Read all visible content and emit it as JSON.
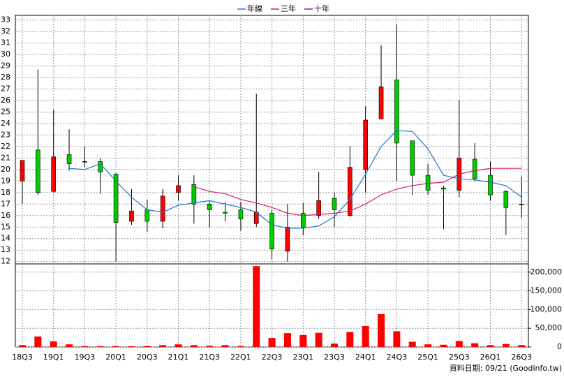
{
  "chart_data": {
    "type": "candlestick",
    "categories": [
      "18Q3",
      null,
      "19Q1",
      null,
      "19Q3",
      null,
      "20Q1",
      null,
      "20Q3",
      null,
      "21Q1",
      null,
      "21Q3",
      null,
      "22Q1",
      null,
      "22Q3",
      null,
      "23Q1",
      null,
      "23Q3",
      null,
      "24Q1",
      null,
      "24Q3",
      null,
      "25Q1",
      null,
      "25Q3",
      null,
      "26Q1",
      null,
      "26Q3"
    ],
    "open": [
      19,
      21.7,
      18.1,
      21.3,
      20.7,
      20.7,
      19.6,
      15.5,
      16.5,
      15.5,
      18,
      18.7,
      17,
      16.3,
      16.5,
      15.3,
      16.2,
      12.9,
      16.2,
      16,
      17.5,
      16,
      20,
      24.4,
      27.8,
      22.5,
      19.5,
      18.4,
      18.2,
      20.9,
      19.5,
      18.1,
      17
    ],
    "high": [
      20.8,
      28.7,
      25.2,
      23.5,
      22,
      21,
      19.7,
      18.3,
      17.4,
      18.3,
      19.5,
      19.5,
      17.3,
      17.2,
      17.2,
      26.6,
      16.5,
      17,
      17.1,
      19.8,
      18,
      22,
      25.5,
      30.8,
      32.6,
      22.5,
      20.5,
      18.6,
      26,
      22.3,
      20.7,
      18.2,
      19.4
    ],
    "low": [
      17,
      17.8,
      18,
      19.9,
      20.2,
      17.9,
      12,
      15.2,
      14.6,
      14.9,
      17.3,
      15.3,
      15,
      15.5,
      14.7,
      15,
      12.2,
      12,
      14.3,
      15.7,
      15,
      15.9,
      18,
      24.4,
      19,
      17.8,
      17.8,
      14.8,
      17.6,
      19,
      17.3,
      14.3,
      15.8
    ],
    "close": [
      20.8,
      18,
      21.1,
      20.5,
      20.7,
      19.8,
      15.4,
      16.4,
      15.5,
      17.7,
      18.6,
      17,
      16.5,
      16.2,
      15.7,
      16.3,
      13.1,
      15,
      15,
      17.3,
      16.5,
      20.2,
      24.3,
      27.2,
      22.3,
      19.5,
      18.2,
      18.3,
      21,
      19.2,
      17.8,
      16.7,
      17
    ],
    "up_color": "#ff0000",
    "down_color": "#00cc00",
    "lines": [
      {
        "name": "年線",
        "color": "#1f78d0",
        "values": [
          null,
          null,
          null,
          20.1,
          20,
          20.5,
          19,
          17.6,
          16.5,
          16.3,
          16.9,
          17.1,
          17.3,
          17,
          16.7,
          16.3,
          15.2,
          14.9,
          14.9,
          15.1,
          15.9,
          17.4,
          19.6,
          22,
          23.4,
          23.3,
          21.8,
          19.5,
          19.2,
          19.1,
          18.9,
          18.6,
          17.6
        ]
      },
      {
        "name": "三年",
        "color": "#d0206a",
        "values": [
          null,
          null,
          null,
          null,
          null,
          null,
          null,
          null,
          null,
          null,
          null,
          18.5,
          18.1,
          17.9,
          17.4,
          17.1,
          16.7,
          16.2,
          16,
          16.1,
          16.2,
          16.4,
          17,
          17.8,
          18.3,
          18.6,
          18.8,
          18.9,
          19.6,
          19.9,
          20.1,
          20.1,
          20.1
        ]
      },
      {
        "name": "十年",
        "color": "#8a1a8a",
        "values": [
          null,
          null,
          null,
          null,
          null,
          null,
          null,
          null,
          null,
          null,
          null,
          null,
          null,
          null,
          null,
          null,
          null,
          null,
          null,
          null,
          null,
          null,
          null,
          null,
          null,
          null,
          null,
          null,
          null,
          null,
          null,
          null,
          null
        ]
      }
    ],
    "ylim": [
      11.8,
      33.4
    ],
    "yticks": [
      12,
      13,
      14,
      15,
      16,
      17,
      18,
      19,
      20,
      21,
      22,
      23,
      24,
      25,
      26,
      27,
      28,
      29,
      30,
      31,
      32,
      33
    ],
    "grid": true,
    "volume": {
      "color": "#ff0000",
      "values": [
        5000,
        28000,
        15000,
        7000,
        2000,
        2000,
        2000,
        2000,
        2500,
        5000,
        7000,
        5000,
        3000,
        5000,
        2500,
        216000,
        24000,
        37000,
        32000,
        38000,
        9000,
        40000,
        56000,
        88000,
        42000,
        14000,
        7000,
        6000,
        16000,
        10000,
        5000,
        8000,
        5000
      ],
      "ylim": [
        0,
        222000
      ],
      "yticks": [
        0,
        {
          "value": 50000,
          "label": "50,000"
        },
        {
          "value": 100000,
          "label": "100,000"
        },
        {
          "value": 150000,
          "label": "150,000"
        },
        {
          "value": 200000,
          "label": "200,000"
        }
      ]
    },
    "source": "資料日期: 09/21 (Goodinfo.tw)"
  }
}
